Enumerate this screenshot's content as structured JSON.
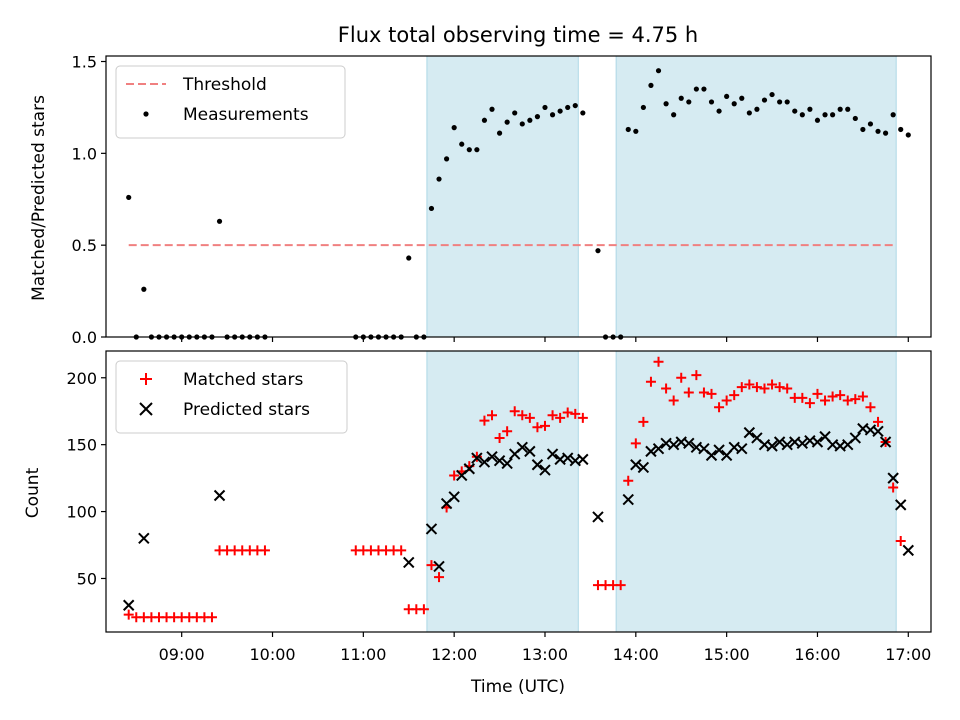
{
  "chart_data": [
    {
      "type": "scatter",
      "title": "Flux total observing time = 4.75 h",
      "ylabel": "Matched/Predicted stars",
      "xlabel": "",
      "ylim": [
        0,
        1.53
      ],
      "xlim": [
        "08:10",
        "17:15"
      ],
      "y_ticks": [
        "0.0",
        "0.5",
        "1.0",
        "1.5"
      ],
      "legend_position": "top-left",
      "threshold": {
        "name": "Threshold",
        "value": 0.5,
        "color": "#f08080",
        "style": "dashed",
        "x_range": [
          "08:25",
          "16:50"
        ]
      },
      "shaded_intervals": [
        [
          "11:42",
          "13:22"
        ],
        [
          "13:47",
          "16:52"
        ]
      ],
      "shade_color": "#add8e6",
      "series": [
        {
          "name": "Measurements",
          "color": "#000000",
          "points": [
            [
              "08:25",
              0.76
            ],
            [
              "08:30",
              0.0
            ],
            [
              "08:35",
              0.26
            ],
            [
              "08:40",
              0.0
            ],
            [
              "08:45",
              0.0
            ],
            [
              "08:50",
              0.0
            ],
            [
              "08:55",
              0.0
            ],
            [
              "09:00",
              0.0
            ],
            [
              "09:05",
              0.0
            ],
            [
              "09:10",
              0.0
            ],
            [
              "09:15",
              0.0
            ],
            [
              "09:20",
              0.0
            ],
            [
              "09:25",
              0.63
            ],
            [
              "09:30",
              0.0
            ],
            [
              "09:35",
              0.0
            ],
            [
              "09:40",
              0.0
            ],
            [
              "09:45",
              0.0
            ],
            [
              "09:50",
              0.0
            ],
            [
              "09:55",
              0.0
            ],
            [
              "10:55",
              0.0
            ],
            [
              "11:00",
              0.0
            ],
            [
              "11:05",
              0.0
            ],
            [
              "11:10",
              0.0
            ],
            [
              "11:15",
              0.0
            ],
            [
              "11:20",
              0.0
            ],
            [
              "11:25",
              0.0
            ],
            [
              "11:30",
              0.43
            ],
            [
              "11:35",
              0.0
            ],
            [
              "11:40",
              0.0
            ],
            [
              "11:45",
              0.7
            ],
            [
              "11:50",
              0.86
            ],
            [
              "11:55",
              0.97
            ],
            [
              "12:00",
              1.14
            ],
            [
              "12:05",
              1.05
            ],
            [
              "12:10",
              1.02
            ],
            [
              "12:15",
              1.02
            ],
            [
              "12:20",
              1.18
            ],
            [
              "12:25",
              1.24
            ],
            [
              "12:30",
              1.11
            ],
            [
              "12:35",
              1.17
            ],
            [
              "12:40",
              1.22
            ],
            [
              "12:45",
              1.16
            ],
            [
              "12:50",
              1.18
            ],
            [
              "12:55",
              1.2
            ],
            [
              "13:00",
              1.25
            ],
            [
              "13:05",
              1.21
            ],
            [
              "13:10",
              1.23
            ],
            [
              "13:15",
              1.25
            ],
            [
              "13:20",
              1.26
            ],
            [
              "13:25",
              1.22
            ],
            [
              "13:35",
              0.47
            ],
            [
              "13:40",
              0.0
            ],
            [
              "13:45",
              0.0
            ],
            [
              "13:50",
              0.0
            ],
            [
              "13:55",
              1.13
            ],
            [
              "14:00",
              1.12
            ],
            [
              "14:05",
              1.25
            ],
            [
              "14:10",
              1.37
            ],
            [
              "14:15",
              1.45
            ],
            [
              "14:20",
              1.27
            ],
            [
              "14:25",
              1.21
            ],
            [
              "14:30",
              1.3
            ],
            [
              "14:35",
              1.28
            ],
            [
              "14:40",
              1.35
            ],
            [
              "14:45",
              1.35
            ],
            [
              "14:50",
              1.28
            ],
            [
              "14:55",
              1.23
            ],
            [
              "15:00",
              1.31
            ],
            [
              "15:05",
              1.27
            ],
            [
              "15:10",
              1.3
            ],
            [
              "15:15",
              1.22
            ],
            [
              "15:20",
              1.24
            ],
            [
              "15:25",
              1.29
            ],
            [
              "15:30",
              1.32
            ],
            [
              "15:35",
              1.28
            ],
            [
              "15:40",
              1.28
            ],
            [
              "15:45",
              1.23
            ],
            [
              "15:50",
              1.21
            ],
            [
              "15:55",
              1.24
            ],
            [
              "16:00",
              1.18
            ],
            [
              "16:05",
              1.21
            ],
            [
              "16:10",
              1.21
            ],
            [
              "16:15",
              1.24
            ],
            [
              "16:20",
              1.24
            ],
            [
              "16:25",
              1.19
            ],
            [
              "16:30",
              1.13
            ],
            [
              "16:35",
              1.16
            ],
            [
              "16:40",
              1.12
            ],
            [
              "16:45",
              1.11
            ],
            [
              "16:50",
              1.21
            ],
            [
              "16:55",
              1.13
            ],
            [
              "17:00",
              1.1
            ]
          ]
        }
      ]
    },
    {
      "type": "scatter",
      "title": "",
      "ylabel": "Count",
      "xlabel": "Time (UTC)",
      "ylim": [
        10,
        220
      ],
      "xlim": [
        "08:10",
        "17:15"
      ],
      "y_ticks": [
        "50",
        "100",
        "150",
        "200"
      ],
      "x_ticks": [
        "09:00",
        "10:00",
        "11:00",
        "12:00",
        "13:00",
        "14:00",
        "15:00",
        "16:00",
        "17:00"
      ],
      "legend_position": "top-left",
      "shaded_intervals": [
        [
          "11:42",
          "13:22"
        ],
        [
          "13:47",
          "16:52"
        ]
      ],
      "shade_color": "#add8e6",
      "series": [
        {
          "name": "Matched stars",
          "marker": "plus",
          "color": "#ff0000",
          "points": [
            [
              "08:25",
              23
            ],
            [
              "08:30",
              21
            ],
            [
              "08:35",
              21
            ],
            [
              "08:40",
              21
            ],
            [
              "08:45",
              21
            ],
            [
              "08:50",
              21
            ],
            [
              "08:55",
              21
            ],
            [
              "09:00",
              21
            ],
            [
              "09:05",
              21
            ],
            [
              "09:10",
              21
            ],
            [
              "09:15",
              21
            ],
            [
              "09:20",
              21
            ],
            [
              "09:25",
              71
            ],
            [
              "09:30",
              71
            ],
            [
              "09:35",
              71
            ],
            [
              "09:40",
              71
            ],
            [
              "09:45",
              71
            ],
            [
              "09:50",
              71
            ],
            [
              "09:55",
              71
            ],
            [
              "10:55",
              71
            ],
            [
              "11:00",
              71
            ],
            [
              "11:05",
              71
            ],
            [
              "11:10",
              71
            ],
            [
              "11:15",
              71
            ],
            [
              "11:20",
              71
            ],
            [
              "11:25",
              71
            ],
            [
              "11:30",
              27
            ],
            [
              "11:35",
              27
            ],
            [
              "11:40",
              27
            ],
            [
              "11:45",
              60
            ],
            [
              "11:50",
              51
            ],
            [
              "11:55",
              103
            ],
            [
              "12:00",
              127
            ],
            [
              "12:05",
              130
            ],
            [
              "12:10",
              134
            ],
            [
              "12:15",
              141
            ],
            [
              "12:20",
              168
            ],
            [
              "12:25",
              172
            ],
            [
              "12:30",
              155
            ],
            [
              "12:35",
              160
            ],
            [
              "12:40",
              175
            ],
            [
              "12:45",
              172
            ],
            [
              "12:50",
              170
            ],
            [
              "12:55",
              163
            ],
            [
              "13:00",
              164
            ],
            [
              "13:05",
              172
            ],
            [
              "13:10",
              170
            ],
            [
              "13:15",
              174
            ],
            [
              "13:20",
              173
            ],
            [
              "13:25",
              170
            ],
            [
              "13:35",
              45
            ],
            [
              "13:40",
              45
            ],
            [
              "13:45",
              45
            ],
            [
              "13:50",
              45
            ],
            [
              "13:55",
              123
            ],
            [
              "14:00",
              151
            ],
            [
              "14:05",
              167
            ],
            [
              "14:10",
              197
            ],
            [
              "14:15",
              212
            ],
            [
              "14:20",
              192
            ],
            [
              "14:25",
              183
            ],
            [
              "14:30",
              200
            ],
            [
              "14:35",
              189
            ],
            [
              "14:40",
              202
            ],
            [
              "14:45",
              189
            ],
            [
              "14:50",
              188
            ],
            [
              "14:55",
              178
            ],
            [
              "15:00",
              183
            ],
            [
              "15:05",
              187
            ],
            [
              "15:10",
              193
            ],
            [
              "15:15",
              195
            ],
            [
              "15:20",
              193
            ],
            [
              "15:25",
              192
            ],
            [
              "15:30",
              195
            ],
            [
              "15:35",
              193
            ],
            [
              "15:40",
              192
            ],
            [
              "15:45",
              185
            ],
            [
              "15:50",
              185
            ],
            [
              "15:55",
              181
            ],
            [
              "16:00",
              188
            ],
            [
              "16:05",
              183
            ],
            [
              "16:10",
              186
            ],
            [
              "16:15",
              187
            ],
            [
              "16:20",
              183
            ],
            [
              "16:25",
              184
            ],
            [
              "16:30",
              186
            ],
            [
              "16:35",
              178
            ],
            [
              "16:40",
              167
            ],
            [
              "16:45",
              152
            ],
            [
              "16:50",
              118
            ],
            [
              "16:55",
              78
            ]
          ]
        },
        {
          "name": "Predicted stars",
          "marker": "x",
          "color": "#000000",
          "points": [
            [
              "08:25",
              30
            ],
            [
              "08:35",
              80
            ],
            [
              "09:25",
              112
            ],
            [
              "11:30",
              62
            ],
            [
              "11:45",
              87
            ],
            [
              "11:50",
              59
            ],
            [
              "11:55",
              106
            ],
            [
              "12:00",
              111
            ],
            [
              "12:05",
              127
            ],
            [
              "12:10",
              132
            ],
            [
              "12:15",
              140
            ],
            [
              "12:20",
              137
            ],
            [
              "12:25",
              141
            ],
            [
              "12:30",
              138
            ],
            [
              "12:35",
              136
            ],
            [
              "12:40",
              143
            ],
            [
              "12:45",
              148
            ],
            [
              "12:50",
              145
            ],
            [
              "12:55",
              135
            ],
            [
              "13:00",
              131
            ],
            [
              "13:05",
              143
            ],
            [
              "13:10",
              139
            ],
            [
              "13:15",
              140
            ],
            [
              "13:20",
              138
            ],
            [
              "13:25",
              139
            ],
            [
              "13:35",
              96
            ],
            [
              "13:55",
              109
            ],
            [
              "14:00",
              135
            ],
            [
              "14:05",
              133
            ],
            [
              "14:10",
              145
            ],
            [
              "14:15",
              147
            ],
            [
              "14:20",
              151
            ],
            [
              "14:25",
              150
            ],
            [
              "14:30",
              152
            ],
            [
              "14:35",
              151
            ],
            [
              "14:40",
              148
            ],
            [
              "14:45",
              147
            ],
            [
              "14:50",
              142
            ],
            [
              "14:55",
              146
            ],
            [
              "15:00",
              142
            ],
            [
              "15:05",
              148
            ],
            [
              "15:10",
              147
            ],
            [
              "15:15",
              159
            ],
            [
              "15:20",
              155
            ],
            [
              "15:25",
              150
            ],
            [
              "15:30",
              149
            ],
            [
              "15:35",
              152
            ],
            [
              "15:40",
              150
            ],
            [
              "15:45",
              152
            ],
            [
              "15:50",
              151
            ],
            [
              "15:55",
              153
            ],
            [
              "16:00",
              152
            ],
            [
              "16:05",
              156
            ],
            [
              "16:10",
              150
            ],
            [
              "16:15",
              149
            ],
            [
              "16:20",
              150
            ],
            [
              "16:25",
              155
            ],
            [
              "16:30",
              162
            ],
            [
              "16:35",
              161
            ],
            [
              "16:40",
              160
            ],
            [
              "16:45",
              152
            ],
            [
              "16:50",
              125
            ],
            [
              "16:55",
              105
            ],
            [
              "17:00",
              71
            ]
          ]
        }
      ]
    }
  ]
}
